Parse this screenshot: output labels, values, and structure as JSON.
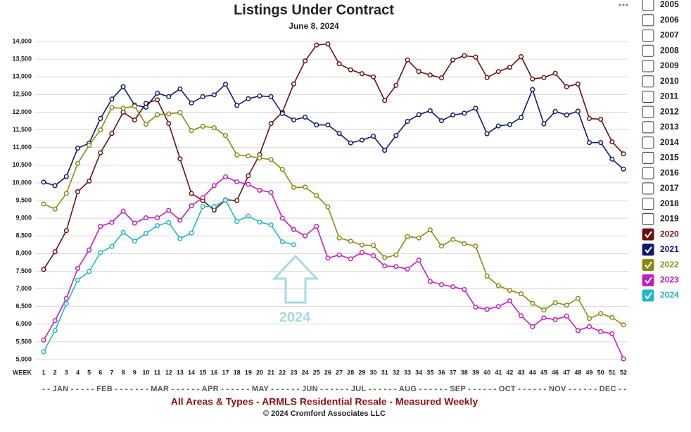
{
  "chart_data": {
    "type": "line",
    "title": "Listings Under Contract",
    "subtitle": "June 8, 2024",
    "x_axis_label": "WEEK",
    "month_axis": "- - JAN - - - - - FEB - - - - - - - MAR - - - - - - APR - - - - - - MAY - - - - - - JUN - - - - - - JUL - - - - - - AUG - - - - - - SEP - - - - - - OCT - - - - - - NOV - - - - - - DEC - -",
    "footer": "All Areas & Types - ARMLS Residential Resale - Measured Weekly",
    "copyright": "© 2024 Cromford Associates LLC",
    "annotation": "2024",
    "annotation_color": "#a8d8e8",
    "x": [
      1,
      2,
      3,
      4,
      5,
      6,
      7,
      8,
      9,
      10,
      11,
      12,
      13,
      14,
      15,
      16,
      17,
      18,
      19,
      20,
      21,
      22,
      23,
      24,
      25,
      26,
      27,
      28,
      29,
      30,
      31,
      32,
      33,
      34,
      35,
      36,
      37,
      38,
      39,
      40,
      41,
      42,
      43,
      44,
      45,
      46,
      47,
      48,
      49,
      50,
      51,
      52
    ],
    "xlim": [
      1,
      52
    ],
    "ylim": [
      5000,
      14000
    ],
    "yticks": [
      {
        "value": 5000,
        "label": "5,000"
      },
      {
        "value": 5500,
        "label": "5,500"
      },
      {
        "value": 6000,
        "label": "6,000"
      },
      {
        "value": 6500,
        "label": "6,500"
      },
      {
        "value": 7000,
        "label": "7,000"
      },
      {
        "value": 7500,
        "label": "7,500"
      },
      {
        "value": 8000,
        "label": "8,000"
      },
      {
        "value": 8500,
        "label": "8,500"
      },
      {
        "value": 9000,
        "label": "9,000"
      },
      {
        "value": 9500,
        "label": "9,500"
      },
      {
        "value": 10000,
        "label": "10,000"
      },
      {
        "value": 10500,
        "label": "10,500"
      },
      {
        "value": 11000,
        "label": "11,000"
      },
      {
        "value": 11500,
        "label": "11,500"
      },
      {
        "value": 12000,
        "label": "12,000"
      },
      {
        "value": 12500,
        "label": "12,500"
      },
      {
        "value": 13000,
        "label": "13,000"
      },
      {
        "value": 13500,
        "label": "13,500"
      },
      {
        "value": 14000,
        "label": "14,000"
      }
    ],
    "grid": true,
    "unchecked_years": [
      "2005",
      "2006",
      "2007",
      "2008",
      "2009",
      "2010",
      "2011",
      "2012",
      "2013",
      "2014",
      "2015",
      "2016",
      "2017",
      "2018",
      "2019"
    ],
    "series": [
      {
        "name": "2020",
        "color": "#6b1010",
        "values": [
          7550,
          8050,
          8650,
          9750,
          10050,
          10850,
          11400,
          12000,
          11780,
          12250,
          12350,
          11680,
          10680,
          9700,
          9500,
          9230,
          9520,
          9500,
          10200,
          10800,
          11680,
          12000,
          12800,
          13450,
          13900,
          13930,
          13370,
          13200,
          13090,
          13000,
          12330,
          12760,
          13480,
          13150,
          13050,
          12970,
          13480,
          13600,
          13560,
          12980,
          13150,
          13270,
          13570,
          12940,
          12980,
          13100,
          12720,
          12800,
          11820,
          11800,
          11160,
          10820
        ]
      },
      {
        "name": "2021",
        "color": "#101a6e",
        "values": [
          10020,
          9920,
          10180,
          10980,
          11120,
          11820,
          12370,
          12720,
          12200,
          12140,
          12540,
          12440,
          12660,
          12260,
          12440,
          12490,
          12790,
          12190,
          12380,
          12460,
          12440,
          11960,
          11780,
          11860,
          11640,
          11640,
          11400,
          11130,
          11210,
          11320,
          10920,
          11340,
          11740,
          11930,
          12040,
          11760,
          11920,
          11970,
          12110,
          11390,
          11610,
          11650,
          11850,
          12640,
          11670,
          12020,
          11920,
          12030,
          11140,
          11140,
          10670,
          10390
        ]
      },
      {
        "name": "2022",
        "color": "#8a8a12",
        "values": [
          9400,
          9260,
          9700,
          10550,
          11060,
          11500,
          12130,
          12110,
          12170,
          11660,
          11930,
          11950,
          11990,
          11480,
          11600,
          11560,
          11340,
          10790,
          10760,
          10700,
          10660,
          10380,
          9870,
          9880,
          9640,
          9320,
          8440,
          8350,
          8240,
          8230,
          7880,
          7960,
          8480,
          8440,
          8670,
          8210,
          8400,
          8280,
          8210,
          7360,
          7090,
          6960,
          6860,
          6590,
          6400,
          6610,
          6540,
          6730,
          6160,
          6300,
          6190,
          5980
        ]
      },
      {
        "name": "2023",
        "color": "#c020c0",
        "values": [
          5550,
          6100,
          6730,
          7580,
          8100,
          8770,
          8880,
          9200,
          8860,
          9010,
          9010,
          9220,
          8940,
          9350,
          9580,
          9920,
          10170,
          10030,
          9960,
          9790,
          9730,
          9000,
          8680,
          8500,
          8770,
          7870,
          7960,
          7850,
          8030,
          7940,
          7650,
          7630,
          7560,
          7810,
          7210,
          7120,
          7060,
          6980,
          6480,
          6420,
          6500,
          6660,
          6240,
          5930,
          6180,
          6130,
          6230,
          5820,
          5930,
          5790,
          5730,
          5020
        ]
      },
      {
        "name": "2024",
        "color": "#22b8c2",
        "values": [
          5220,
          5820,
          6580,
          7250,
          7490,
          8030,
          8200,
          8600,
          8350,
          8570,
          8790,
          8880,
          8420,
          8580,
          9330,
          9330,
          9510,
          8910,
          9060,
          8890,
          8810,
          8330,
          8250,
          null,
          null,
          null,
          null,
          null,
          null,
          null,
          null,
          null,
          null,
          null,
          null,
          null,
          null,
          null,
          null,
          null,
          null,
          null,
          null,
          null,
          null,
          null,
          null,
          null,
          null,
          null,
          null,
          null
        ]
      }
    ]
  }
}
